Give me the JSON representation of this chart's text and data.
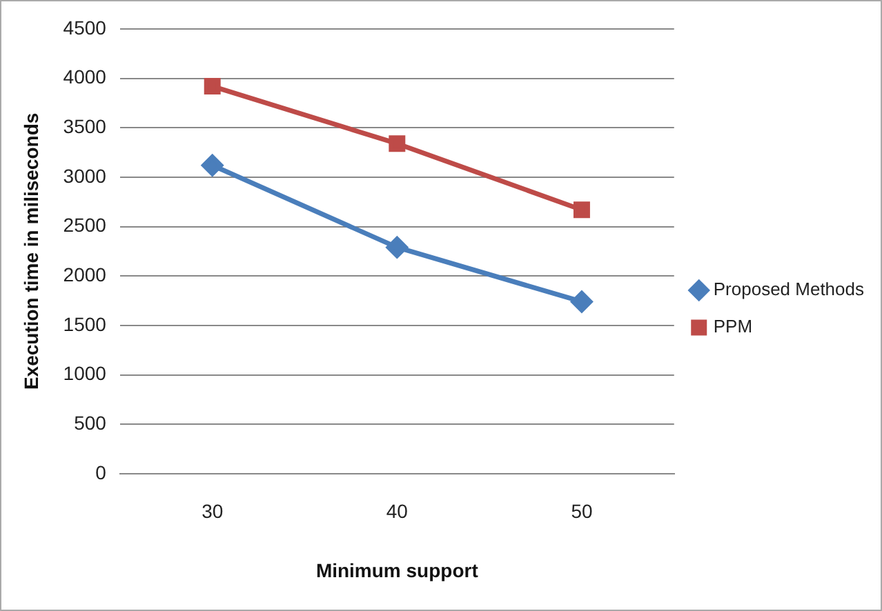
{
  "chart_data": {
    "type": "line",
    "xlabel": "Minimum support",
    "ylabel": "Execution time in miliseconds",
    "categories": [
      "30",
      "40",
      "50"
    ],
    "series": [
      {
        "name": "Proposed Methods",
        "color": "#4a7ebb",
        "marker": "diamond",
        "values": [
          3120,
          2290,
          1740
        ]
      },
      {
        "name": "PPM",
        "color": "#be4b48",
        "marker": "square",
        "values": [
          3920,
          3340,
          2670
        ]
      }
    ],
    "ylim": [
      0,
      4500
    ],
    "yticks": [
      0,
      500,
      1000,
      1500,
      2000,
      2500,
      3000,
      3500,
      4000,
      4500
    ],
    "grid": "y",
    "legend": "right"
  }
}
